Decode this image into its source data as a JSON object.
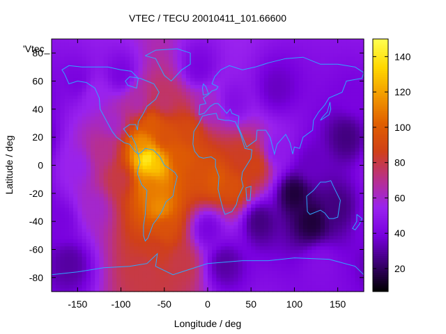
{
  "chart_data": {
    "type": "heatmap",
    "title": "VTEC / TECU 20010411_101.66600",
    "key_label": "'Vtec_",
    "xlabel": "Longitude / deg",
    "ylabel": "Latitude / deg",
    "xlim": [
      -180,
      180
    ],
    "ylim": [
      -90,
      90
    ],
    "x_ticks": [
      -150,
      -100,
      -50,
      0,
      50,
      100,
      150
    ],
    "y_ticks": [
      -80,
      -60,
      -40,
      -20,
      0,
      20,
      40,
      60,
      80
    ],
    "colorbar": {
      "range": [
        7,
        150
      ],
      "ticks": [
        20,
        40,
        60,
        80,
        100,
        120,
        140
      ],
      "palette_stops": [
        "#000000",
        "#3a0070",
        "#7700dd",
        "#9922ee",
        "#b8308c",
        "#d04018",
        "#e05f00",
        "#f29a00",
        "#ffd800",
        "#ffff50"
      ]
    },
    "overlay": "coastlines",
    "coastline_color": "#2fa8ff",
    "anchors": [
      [
        -70,
        5,
        145
      ],
      [
        -60,
        0,
        130
      ],
      [
        -75,
        15,
        115
      ],
      [
        -65,
        30,
        100
      ],
      [
        -50,
        20,
        95
      ],
      [
        -30,
        5,
        100
      ],
      [
        -10,
        -5,
        95
      ],
      [
        10,
        -10,
        100
      ],
      [
        30,
        -15,
        95
      ],
      [
        40,
        5,
        85
      ],
      [
        55,
        0,
        88
      ],
      [
        -20,
        25,
        92
      ],
      [
        -55,
        -30,
        115
      ],
      [
        -65,
        -15,
        110
      ],
      [
        -50,
        -45,
        95
      ],
      [
        -60,
        -60,
        85
      ],
      [
        -70,
        -75,
        80
      ],
      [
        -30,
        -70,
        80
      ],
      [
        -50,
        45,
        75
      ],
      [
        -80,
        45,
        65
      ],
      [
        -110,
        30,
        60
      ],
      [
        -120,
        10,
        70
      ],
      [
        -100,
        -10,
        80
      ],
      [
        -130,
        -30,
        60
      ],
      [
        -150,
        0,
        55
      ],
      [
        0,
        40,
        60
      ],
      [
        30,
        45,
        45
      ],
      [
        80,
        10,
        50
      ],
      [
        120,
        0,
        35
      ],
      [
        100,
        -20,
        15
      ],
      [
        150,
        -30,
        25
      ],
      [
        120,
        -40,
        15
      ],
      [
        80,
        55,
        35
      ],
      [
        -100,
        65,
        40
      ],
      [
        -150,
        60,
        40
      ],
      [
        0,
        -45,
        40
      ],
      [
        -170,
        -40,
        40
      ],
      [
        -10,
        70,
        40
      ],
      [
        160,
        20,
        25
      ],
      [
        -160,
        -70,
        30
      ],
      [
        20,
        -70,
        30
      ],
      [
        130,
        -70,
        45
      ],
      [
        60,
        -40,
        25
      ],
      [
        -130,
        50,
        55
      ],
      [
        170,
        50,
        40
      ]
    ]
  }
}
